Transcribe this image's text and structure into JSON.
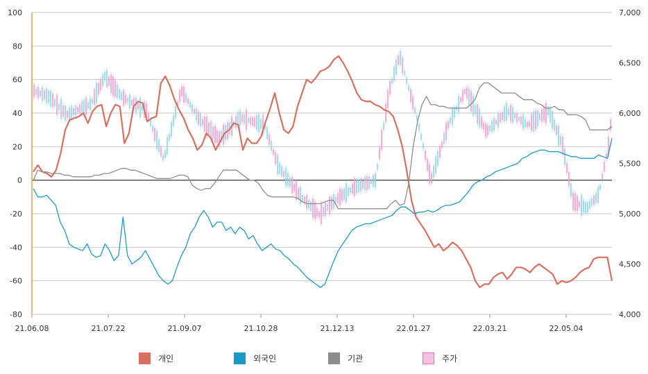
{
  "chart_data": {
    "type": "line",
    "title": "",
    "x_tick_labels": [
      "21.06.08",
      "21.07.22",
      "21.09.07",
      "21.10.28",
      "21.12.13",
      "22.01.27",
      "22.03.21",
      "22.05.04"
    ],
    "left_axis": {
      "ylim": [
        -80,
        100
      ],
      "ticks": [
        -80,
        -60,
        -40,
        -20,
        0,
        20,
        40,
        60,
        80,
        100
      ]
    },
    "right_axis": {
      "ylim": [
        4000,
        7000
      ],
      "ticks": [
        "4,000",
        "4,500",
        "5,000",
        "5,500",
        "6,000",
        "6,500",
        "7,000"
      ]
    },
    "series": [
      {
        "name": "개인",
        "color": "#d9705f",
        "axis": "left",
        "values": [
          5,
          9,
          5,
          4,
          2,
          6,
          16,
          30,
          36,
          37,
          38,
          40,
          34,
          41,
          44,
          45,
          32,
          40,
          45,
          44,
          22,
          28,
          44,
          47,
          46,
          35,
          37,
          38,
          58,
          62,
          56,
          48,
          42,
          37,
          30,
          25,
          18,
          21,
          28,
          25,
          18,
          23,
          28,
          30,
          34,
          33,
          18,
          25,
          22,
          22,
          26,
          35,
          43,
          52,
          40,
          30,
          28,
          32,
          44,
          52,
          60,
          58,
          61,
          65,
          66,
          68,
          72,
          74,
          70,
          65,
          59,
          52,
          48,
          47,
          47,
          45,
          44,
          42,
          41,
          38,
          30,
          20,
          5,
          -12,
          -22,
          -26,
          -30,
          -35,
          -40,
          -38,
          -42,
          -40,
          -37,
          -39,
          -42,
          -47,
          -52,
          -60,
          -64,
          -62,
          -62,
          -58,
          -56,
          -55,
          -59,
          -56,
          -52,
          -52,
          -53,
          -55,
          -52,
          -50,
          -52,
          -54,
          -56,
          -62,
          -60,
          -61,
          -60,
          -58,
          -55,
          -53,
          -52,
          -47,
          -46,
          -46,
          -46,
          -60
        ]
      },
      {
        "name": "외국인",
        "color": "#1a9ac9",
        "axis": "left",
        "values": [
          -5,
          -10,
          -10,
          -9,
          -12,
          -15,
          -25,
          -30,
          -38,
          -40,
          -41,
          -42,
          -38,
          -44,
          -46,
          -45,
          -38,
          -42,
          -48,
          -45,
          -22,
          -45,
          -50,
          -48,
          -46,
          -42,
          -47,
          -52,
          -57,
          -60,
          -62,
          -60,
          -52,
          -45,
          -40,
          -32,
          -28,
          -22,
          -18,
          -22,
          -28,
          -25,
          -25,
          -30,
          -28,
          -32,
          -28,
          -30,
          -35,
          -33,
          -38,
          -42,
          -40,
          -38,
          -41,
          -42,
          -45,
          -47,
          -50,
          -52,
          -55,
          -58,
          -60,
          -62,
          -64,
          -62,
          -55,
          -48,
          -42,
          -38,
          -34,
          -30,
          -28,
          -27,
          -26,
          -26,
          -25,
          -24,
          -23,
          -22,
          -21,
          -18,
          -16,
          -16,
          -18,
          -20,
          -19,
          -19,
          -18,
          -19,
          -18,
          -16,
          -15,
          -15,
          -14,
          -13,
          -10,
          -7,
          -3,
          -1,
          0,
          2,
          3,
          5,
          6,
          7,
          8,
          9,
          10,
          13,
          14,
          16,
          17,
          18,
          18,
          17,
          17,
          17,
          16,
          15,
          14,
          14,
          13,
          13,
          13,
          13,
          15,
          14,
          13,
          25
        ]
      },
      {
        "name": "기관",
        "color": "#8c8c8c",
        "axis": "left",
        "values": [
          0,
          6,
          5,
          5,
          4,
          4,
          4,
          3,
          3,
          2,
          2,
          2,
          2,
          2,
          3,
          3,
          4,
          4,
          5,
          6,
          7,
          7,
          6,
          6,
          5,
          4,
          3,
          2,
          1,
          1,
          1,
          1,
          2,
          3,
          3,
          2,
          -3,
          -5,
          -6,
          -5,
          -5,
          -2,
          2,
          6,
          6,
          6,
          6,
          4,
          2,
          0,
          0,
          -2,
          -6,
          -9,
          -10,
          -10,
          -10,
          -10,
          -10,
          -10,
          -11,
          -13,
          -14,
          -14,
          -14,
          -14,
          -13,
          -12,
          -12,
          -17,
          -17,
          -17,
          -17,
          -17,
          -17,
          -17,
          -17,
          -17,
          -17,
          -17,
          -17,
          -14,
          -12,
          -15,
          -14,
          -2,
          20,
          35,
          45,
          50,
          45,
          45,
          44,
          44,
          43,
          43,
          43,
          43,
          43,
          45,
          48,
          55,
          58,
          58,
          56,
          54,
          52,
          52,
          52,
          52,
          50,
          48,
          48,
          48,
          46,
          45,
          43,
          43,
          44,
          42,
          42,
          39,
          39,
          39,
          38,
          36,
          30,
          30,
          30,
          30,
          30,
          32
        ]
      },
      {
        "name": "주가",
        "color": "#f4a9d6",
        "axis": "right",
        "values": []
      }
    ]
  },
  "legend": [
    {
      "label": "개인",
      "color": "#d9705f"
    },
    {
      "label": "외국인",
      "color": "#1a9ac9"
    },
    {
      "label": "기관",
      "color": "#8c8c8c"
    },
    {
      "label": "주가",
      "color": "#f4a9d6",
      "border": "#e76fbd"
    }
  ]
}
